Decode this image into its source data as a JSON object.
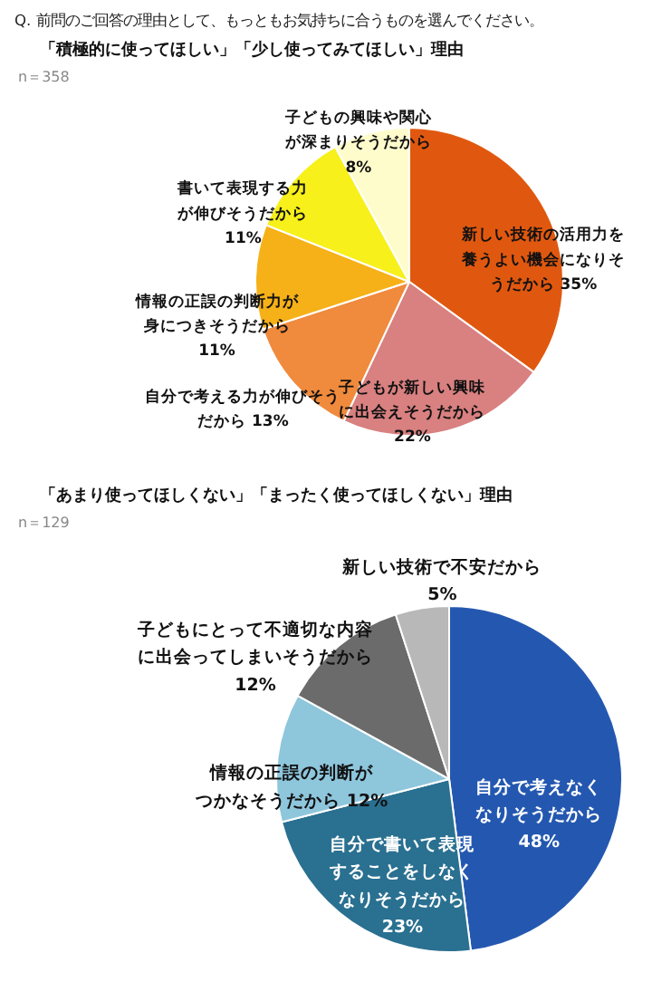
{
  "chart_data": [
    {
      "type": "pie",
      "title": "Q. 前問のご回答の理由として、もっともお気持ちに合うものを選んでください。",
      "subtitle": "「積極的に使ってほしい」「少し使ってみてほしい」理由",
      "annotations": [
        "n＝358"
      ],
      "categories": [
        "新しい技術の活用力を養うよい機会になりそうだから",
        "子どもが新しい興味に出会えそうだから",
        "自分で考える力が伸びそうだから",
        "情報の正誤の判断力が身につきそうだから",
        "書いて表現する力が伸びそうだから",
        "子どもの興味や関心が深まりそうだから"
      ],
      "values": [
        35,
        22,
        13,
        11,
        11,
        8
      ],
      "value_labels": [
        "35%",
        "22%",
        "13%",
        "11%",
        "11%",
        "8%"
      ],
      "colors": [
        "#e0580f",
        "#d98080",
        "#f08a3c",
        "#f5b117",
        "#f7f01a",
        "#fffccc"
      ],
      "legend": false
    },
    {
      "type": "pie",
      "subtitle": "「あまり使ってほしくない」「まったく使ってほしくない」理由",
      "annotations": [
        "n＝129"
      ],
      "categories": [
        "自分で考えなくなりそうだから",
        "自分で書いて表現することをしなくなりそうだから",
        "情報の正誤の判断がつかなそうだから",
        "子どもにとって不適切な内容に出会ってしまいそうだから",
        "新しい技術で不安だから"
      ],
      "values": [
        48,
        23,
        12,
        12,
        5
      ],
      "value_labels": [
        "48%",
        "23%",
        "12%",
        "12%",
        "5%"
      ],
      "colors": [
        "#2458b0",
        "#2a7090",
        "#8ec6dc",
        "#6b6b6b",
        "#b8b8b8"
      ],
      "legend": false
    }
  ]
}
